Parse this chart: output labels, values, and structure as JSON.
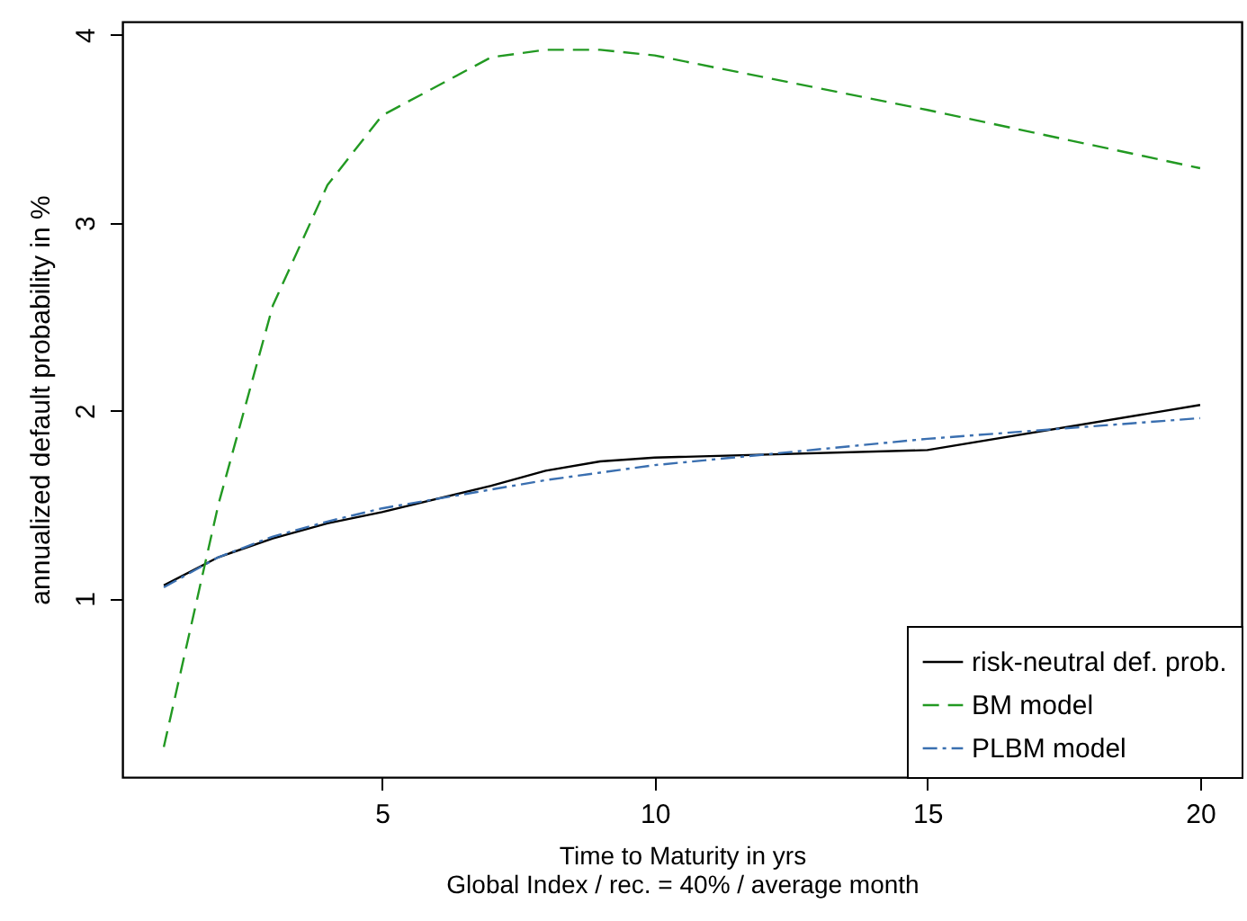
{
  "chart_data": {
    "type": "line",
    "xlabel": "Time to Maturity in yrs",
    "ylabel": "annualized default probability in %",
    "annotations": [
      "Global Index / rec. = 40% / average month"
    ],
    "x": [
      1,
      2,
      3,
      4,
      5,
      7,
      8,
      9,
      10,
      15,
      20
    ],
    "series": [
      {
        "name": "risk-neutral def. prob.",
        "color": "#000000",
        "line_style": "solid",
        "values": [
          1.07,
          1.22,
          1.32,
          1.4,
          1.46,
          1.6,
          1.68,
          1.73,
          1.75,
          1.79,
          2.03
        ]
      },
      {
        "name": "BM model",
        "color": "#229922",
        "line_style": "dashed",
        "values": [
          0.21,
          1.5,
          2.56,
          3.2,
          3.57,
          3.88,
          3.92,
          3.92,
          3.89,
          3.6,
          3.29
        ]
      },
      {
        "name": "PLBM model",
        "color": "#3a6fb0",
        "line_style": "dotted",
        "values": [
          1.06,
          1.22,
          1.33,
          1.41,
          1.48,
          1.58,
          1.63,
          1.67,
          1.71,
          1.85,
          1.96
        ]
      }
    ],
    "xlim": [
      0.24,
      20.76
    ],
    "ylim": [
      0.05,
      4.07
    ],
    "xticks": [
      5,
      10,
      15,
      20
    ],
    "yticks": [
      1,
      2,
      3,
      4
    ],
    "grid": false,
    "legend": "bottom right"
  }
}
